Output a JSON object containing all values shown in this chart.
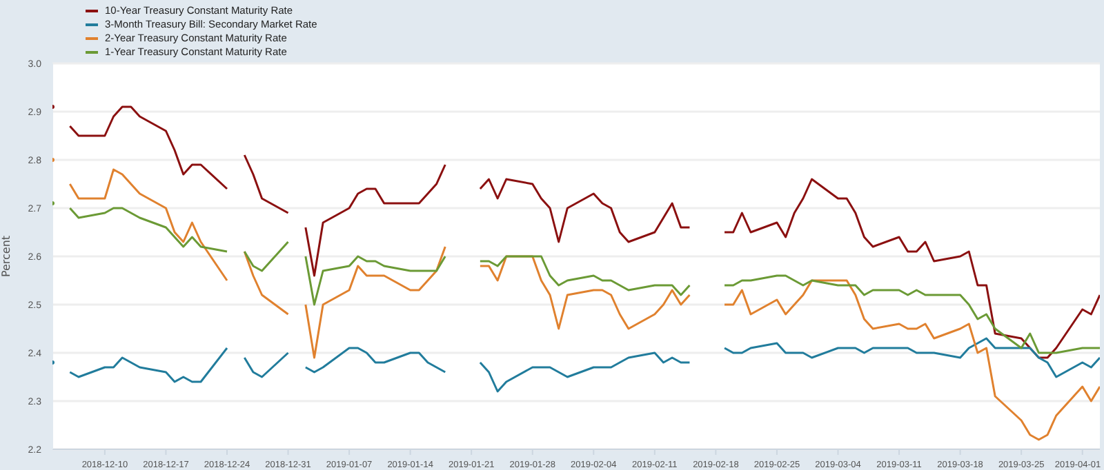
{
  "chart_data": {
    "type": "line",
    "ylabel": "Percent",
    "legend": "top left",
    "grid": "y",
    "marker": "none",
    "line_style": "solid",
    "x": [
      "2018-12-04",
      "2018-12-05",
      "2018-12-06",
      "2018-12-07",
      "2018-12-10",
      "2018-12-11",
      "2018-12-12",
      "2018-12-13",
      "2018-12-14",
      "2018-12-17",
      "2018-12-18",
      "2018-12-19",
      "2018-12-20",
      "2018-12-21",
      "2018-12-24",
      "2018-12-25",
      "2018-12-26",
      "2018-12-27",
      "2018-12-28",
      "2018-12-31",
      "2019-01-01",
      "2019-01-02",
      "2019-01-03",
      "2019-01-04",
      "2019-01-07",
      "2019-01-08",
      "2019-01-09",
      "2019-01-10",
      "2019-01-11",
      "2019-01-14",
      "2019-01-15",
      "2019-01-16",
      "2019-01-17",
      "2019-01-18",
      "2019-01-21",
      "2019-01-22",
      "2019-01-23",
      "2019-01-24",
      "2019-01-25",
      "2019-01-28",
      "2019-01-29",
      "2019-01-30",
      "2019-01-31",
      "2019-02-01",
      "2019-02-04",
      "2019-02-05",
      "2019-02-06",
      "2019-02-07",
      "2019-02-08",
      "2019-02-11",
      "2019-02-12",
      "2019-02-13",
      "2019-02-14",
      "2019-02-15",
      "2019-02-18",
      "2019-02-19",
      "2019-02-20",
      "2019-02-21",
      "2019-02-22",
      "2019-02-25",
      "2019-02-26",
      "2019-02-27",
      "2019-02-28",
      "2019-03-01",
      "2019-03-04",
      "2019-03-05",
      "2019-03-06",
      "2019-03-07",
      "2019-03-08",
      "2019-03-11",
      "2019-03-12",
      "2019-03-13",
      "2019-03-14",
      "2019-03-15",
      "2019-03-18",
      "2019-03-19",
      "2019-03-20",
      "2019-03-21",
      "2019-03-22",
      "2019-03-25",
      "2019-03-26",
      "2019-03-27",
      "2019-03-28",
      "2019-03-29",
      "2019-04-01",
      "2019-04-02",
      "2019-04-03"
    ],
    "series": [
      {
        "name": "10-Year Treasury Constant Maturity Rate",
        "color": "#8b1010",
        "values": [
          2.91,
          null,
          2.87,
          2.85,
          2.85,
          2.89,
          2.91,
          2.91,
          2.89,
          2.86,
          2.82,
          2.77,
          2.79,
          2.79,
          2.74,
          null,
          2.81,
          2.77,
          2.72,
          2.69,
          null,
          2.66,
          2.56,
          2.67,
          2.7,
          2.73,
          2.74,
          2.74,
          2.71,
          2.71,
          2.71,
          2.73,
          2.75,
          2.79,
          null,
          2.74,
          2.76,
          2.72,
          2.76,
          2.75,
          2.72,
          2.7,
          2.63,
          2.7,
          2.73,
          2.71,
          2.7,
          2.65,
          2.63,
          2.65,
          2.68,
          2.71,
          2.66,
          2.66,
          null,
          2.65,
          2.65,
          2.69,
          2.65,
          2.67,
          2.64,
          2.69,
          2.72,
          2.76,
          2.72,
          2.72,
          2.69,
          2.64,
          2.62,
          2.64,
          2.61,
          2.61,
          2.63,
          2.59,
          2.6,
          2.61,
          2.54,
          2.54,
          2.44,
          2.43,
          2.41,
          2.39,
          2.39,
          2.41,
          2.49,
          2.48,
          2.52
        ]
      },
      {
        "name": "3-Month Treasury Bill: Secondary Market Rate",
        "color": "#217c9c",
        "values": [
          2.38,
          null,
          2.36,
          2.35,
          2.37,
          2.37,
          2.39,
          2.38,
          2.37,
          2.36,
          2.34,
          2.35,
          2.34,
          2.34,
          2.41,
          null,
          2.39,
          2.36,
          2.35,
          2.4,
          null,
          2.37,
          2.36,
          2.37,
          2.41,
          2.41,
          2.4,
          2.38,
          2.38,
          2.4,
          2.4,
          2.38,
          2.37,
          2.36,
          null,
          2.38,
          2.36,
          2.32,
          2.34,
          2.37,
          2.37,
          2.37,
          2.36,
          2.35,
          2.37,
          2.37,
          2.37,
          2.38,
          2.39,
          2.4,
          2.38,
          2.39,
          2.38,
          2.38,
          null,
          2.41,
          2.4,
          2.4,
          2.41,
          2.42,
          2.4,
          2.4,
          2.4,
          2.39,
          2.41,
          2.41,
          2.41,
          2.4,
          2.41,
          2.41,
          2.41,
          2.4,
          2.4,
          2.4,
          2.39,
          2.41,
          2.42,
          2.43,
          2.41,
          2.41,
          2.41,
          2.39,
          2.38,
          2.35,
          2.38,
          2.37,
          2.39
        ]
      },
      {
        "name": "2-Year Treasury Constant Maturity Rate",
        "color": "#e0812e",
        "values": [
          2.8,
          null,
          2.75,
          2.72,
          2.72,
          2.78,
          2.77,
          2.75,
          2.73,
          2.7,
          2.65,
          2.63,
          2.67,
          2.63,
          2.55,
          null,
          2.61,
          2.56,
          2.52,
          2.48,
          null,
          2.5,
          2.39,
          2.5,
          2.53,
          2.58,
          2.56,
          2.56,
          2.56,
          2.53,
          2.53,
          2.55,
          2.57,
          2.62,
          null,
          2.58,
          2.58,
          2.55,
          2.6,
          2.6,
          2.55,
          2.52,
          2.45,
          2.52,
          2.53,
          2.53,
          2.52,
          2.48,
          2.45,
          2.48,
          2.5,
          2.53,
          2.5,
          2.52,
          null,
          2.5,
          2.5,
          2.53,
          2.48,
          2.51,
          2.48,
          2.5,
          2.52,
          2.55,
          2.55,
          2.55,
          2.52,
          2.47,
          2.45,
          2.46,
          2.45,
          2.45,
          2.46,
          2.43,
          2.45,
          2.46,
          2.4,
          2.41,
          2.31,
          2.26,
          2.23,
          2.22,
          2.23,
          2.27,
          2.33,
          2.3,
          2.33
        ]
      },
      {
        "name": "1-Year Treasury Constant Maturity Rate",
        "color": "#6b9a35",
        "values": [
          2.71,
          null,
          2.7,
          2.68,
          2.69,
          2.7,
          2.7,
          2.69,
          2.68,
          2.66,
          2.64,
          2.62,
          2.64,
          2.62,
          2.61,
          null,
          2.61,
          2.58,
          2.57,
          2.63,
          null,
          2.6,
          2.5,
          2.57,
          2.58,
          2.6,
          2.59,
          2.59,
          2.58,
          2.57,
          2.57,
          2.57,
          2.57,
          2.6,
          null,
          2.59,
          2.59,
          2.58,
          2.6,
          2.6,
          2.6,
          2.56,
          2.54,
          2.55,
          2.56,
          2.55,
          2.55,
          2.54,
          2.53,
          2.54,
          2.54,
          2.54,
          2.52,
          2.54,
          null,
          2.54,
          2.54,
          2.55,
          2.55,
          2.56,
          2.56,
          2.55,
          2.54,
          2.55,
          2.54,
          2.54,
          2.54,
          2.52,
          2.53,
          2.53,
          2.52,
          2.53,
          2.52,
          2.52,
          2.52,
          2.5,
          2.47,
          2.48,
          2.45,
          2.41,
          2.44,
          2.4,
          2.4,
          2.4,
          2.41,
          2.41,
          2.41
        ]
      }
    ],
    "xlim": [
      "2018-12-04",
      "2019-04-03"
    ],
    "xticks": [
      "2018-12-10",
      "2018-12-17",
      "2018-12-24",
      "2018-12-31",
      "2019-01-07",
      "2019-01-14",
      "2019-01-21",
      "2019-01-28",
      "2019-02-04",
      "2019-02-11",
      "2019-02-18",
      "2019-02-25",
      "2019-03-04",
      "2019-03-11",
      "2019-03-18",
      "2019-03-25",
      "2019-04-01"
    ],
    "ylim": [
      2.2,
      3.0
    ],
    "yticks": [
      2.2,
      2.3,
      2.4,
      2.5,
      2.6,
      2.7,
      2.8,
      2.9,
      {
        "value": 3.0,
        "label": "3.0"
      }
    ]
  }
}
